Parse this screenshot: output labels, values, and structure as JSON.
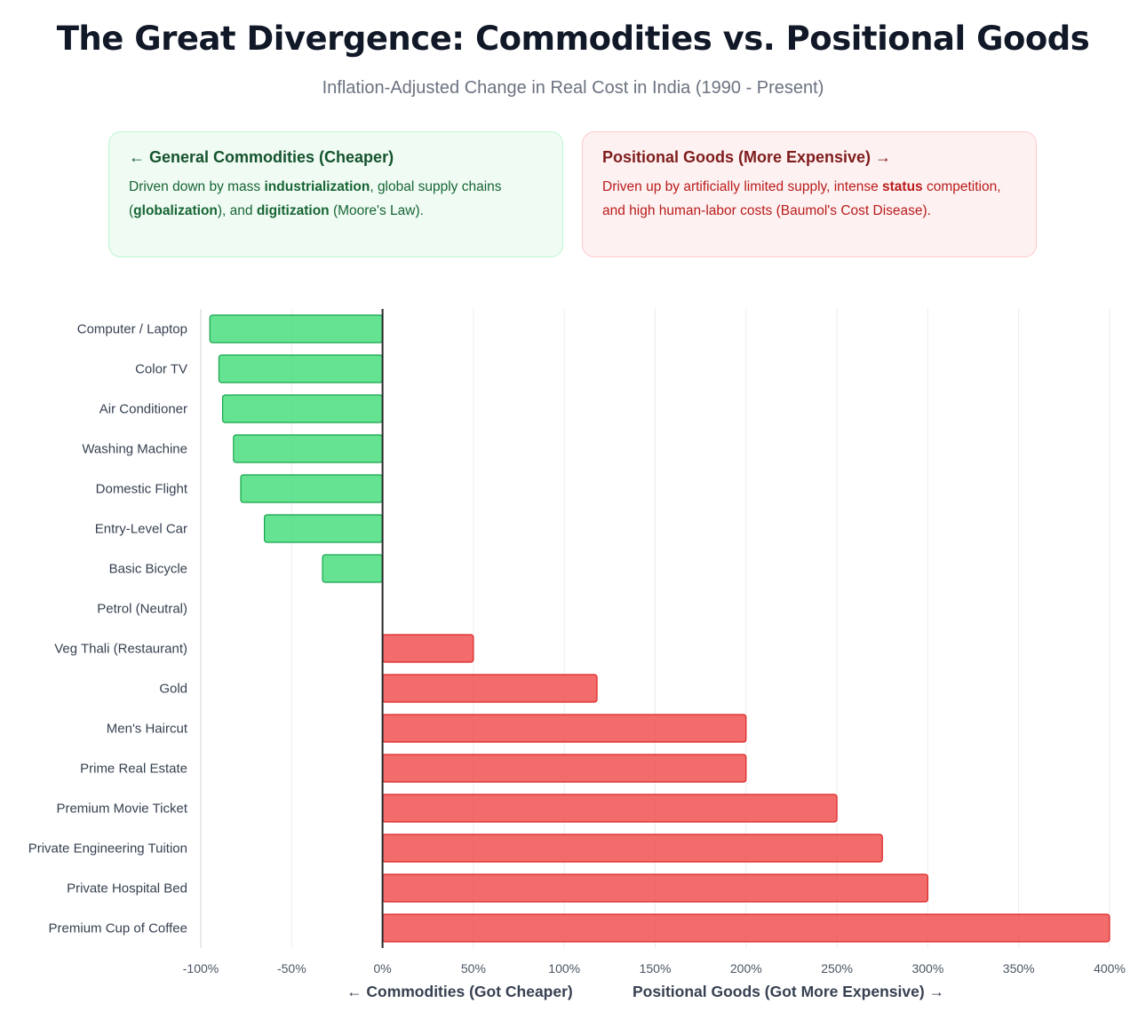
{
  "header": {
    "title": "The Great Divergence: Commodities vs. Positional Goods",
    "subtitle": "Inflation-Adjusted Change in Real Cost in India (1990 - Present)"
  },
  "cards": {
    "commodities": {
      "title": "← General Commodities (Cheaper)",
      "t1": "Driven down by mass ",
      "b1": "industrialization",
      "t2": ", global supply chains (",
      "b2": "globalization",
      "t3": "), and ",
      "b3": "digitization",
      "t4": " (Moore's Law)."
    },
    "positional": {
      "title": "Positional Goods (More Expensive) →",
      "t1": "Driven up by artificially limited supply, intense ",
      "b1": "status",
      "t2": " competition, and high human-labor costs (Baumol's Cost Disease)."
    }
  },
  "axis_titles": {
    "left": "← Commodities (Got Cheaper)",
    "right": "Positional Goods (Got More Expensive) →"
  },
  "colors": {
    "negative_fill": "#4ade80",
    "negative_stroke": "#16a34a",
    "positive_fill": "#f05252",
    "positive_stroke": "#dc2626"
  },
  "chart_data": {
    "type": "bar",
    "orientation": "horizontal",
    "title": "The Great Divergence: Commodities vs. Positional Goods",
    "xlabel": "← Commodities (Got Cheaper)    Positional Goods (Got More Expensive) →",
    "ylabel": "",
    "xlim": [
      -100,
      400
    ],
    "xticks": [
      -100,
      -50,
      0,
      50,
      100,
      150,
      200,
      250,
      300,
      350,
      400
    ],
    "tick_suffix": "%",
    "grid": true,
    "categories": [
      "Computer / Laptop",
      "Color TV",
      "Air Conditioner",
      "Washing Machine",
      "Domestic Flight",
      "Entry-Level Car",
      "Basic Bicycle",
      "Petrol (Neutral)",
      "Veg Thali (Restaurant)",
      "Gold",
      "Men's Haircut",
      "Prime Real Estate",
      "Premium Movie Ticket",
      "Private Engineering Tuition",
      "Private Hospital Bed",
      "Premium Cup of Coffee"
    ],
    "values": [
      -95,
      -90,
      -88,
      -82,
      -78,
      -65,
      -33,
      0,
      50,
      118,
      200,
      200,
      250,
      275,
      300,
      400
    ]
  }
}
